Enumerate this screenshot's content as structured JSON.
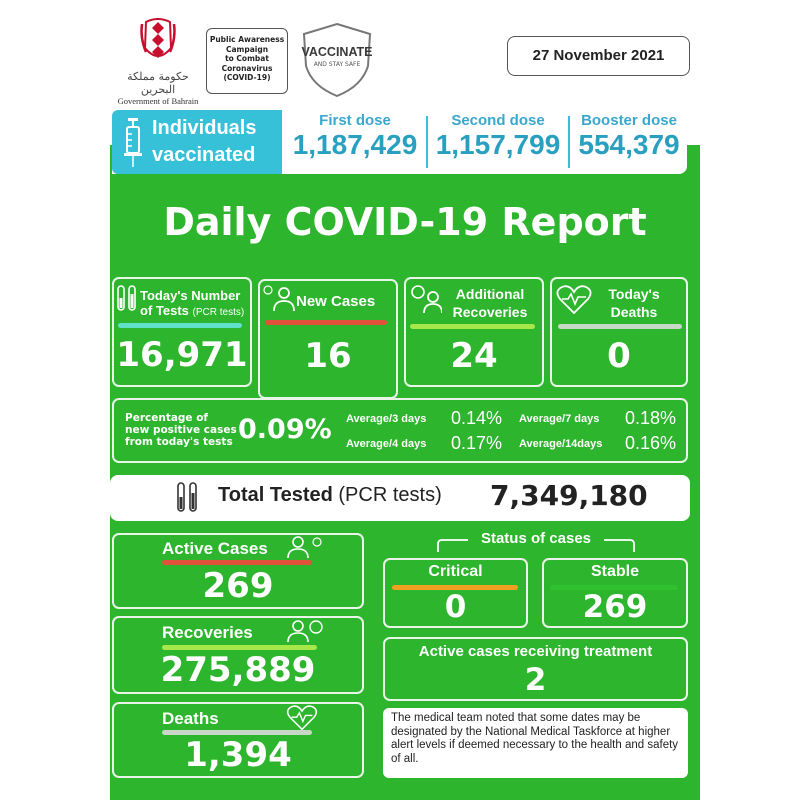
{
  "header": {
    "gov_arabic": "حكومة مملكة البحرين",
    "gov_english": "Government of Bahrain",
    "campaign_lines": [
      "Public Awareness",
      "Campaign",
      "to Combat",
      "Coronavirus",
      "(COVID-19)"
    ],
    "vaccinate": "VACCINATE",
    "stay_safe": "AND STAY SAFE",
    "date": "27 November 2021"
  },
  "vaccinated": {
    "label_line1": "Individuals",
    "label_line2": "vaccinated",
    "doses": [
      {
        "label": "First dose",
        "value": "1,187,429"
      },
      {
        "label": "Second dose",
        "value": "1,157,799"
      },
      {
        "label": "Booster dose",
        "value": "554,379"
      }
    ]
  },
  "title": "Daily COVID-19 Report",
  "daily": {
    "tests_label1": "Today's Number",
    "tests_label2": "of Tests",
    "tests_label2_small": "(PCR tests)",
    "tests_value": "16,971",
    "new_cases_label": "New Cases",
    "new_cases_value": "16",
    "recoveries_label1": "Additional",
    "recoveries_label2": "Recoveries",
    "recoveries_value": "24",
    "deaths_label1": "Today's",
    "deaths_label2": "Deaths",
    "deaths_value": "0"
  },
  "positivity": {
    "label1": "Percentage of",
    "label2": "new positive cases",
    "label3": "from today's tests",
    "value": "0.09%",
    "avg3_label": "Average/3 days",
    "avg3_value": "0.14%",
    "avg7_label": "Average/7 days",
    "avg7_value": "0.18%",
    "avg4_label": "Average/4 days",
    "avg4_value": "0.17%",
    "avg14_label": "Average/14days",
    "avg14_value": "0.16%"
  },
  "total_tested": {
    "label_bold": "Total Tested",
    "label_rest": "(PCR tests)",
    "value": "7,349,180"
  },
  "summary": {
    "active_label": "Active Cases",
    "active_value": "269",
    "recoveries_label": "Recoveries",
    "recoveries_value": "275,889",
    "deaths_label": "Deaths",
    "deaths_value": "1,394"
  },
  "status": {
    "heading": "Status of cases",
    "critical_label": "Critical",
    "critical_value": "0",
    "stable_label": "Stable",
    "stable_value": "269",
    "treatment_label": "Active cases receiving treatment",
    "treatment_value": "2"
  },
  "note": "The medical team noted that some dates may be designated by the National Medical Taskforce at higher alert levels if deemed necessary to the health and safety of all.",
  "colors": {
    "green": "#2db52d",
    "cyan": "#37c1d8",
    "red_bar": "#e0533a",
    "lime_bar": "#a6e84a",
    "teal_bar": "#5fe0c8",
    "gray_bar": "#c8d8c8",
    "orange_bar": "#f0a020"
  }
}
